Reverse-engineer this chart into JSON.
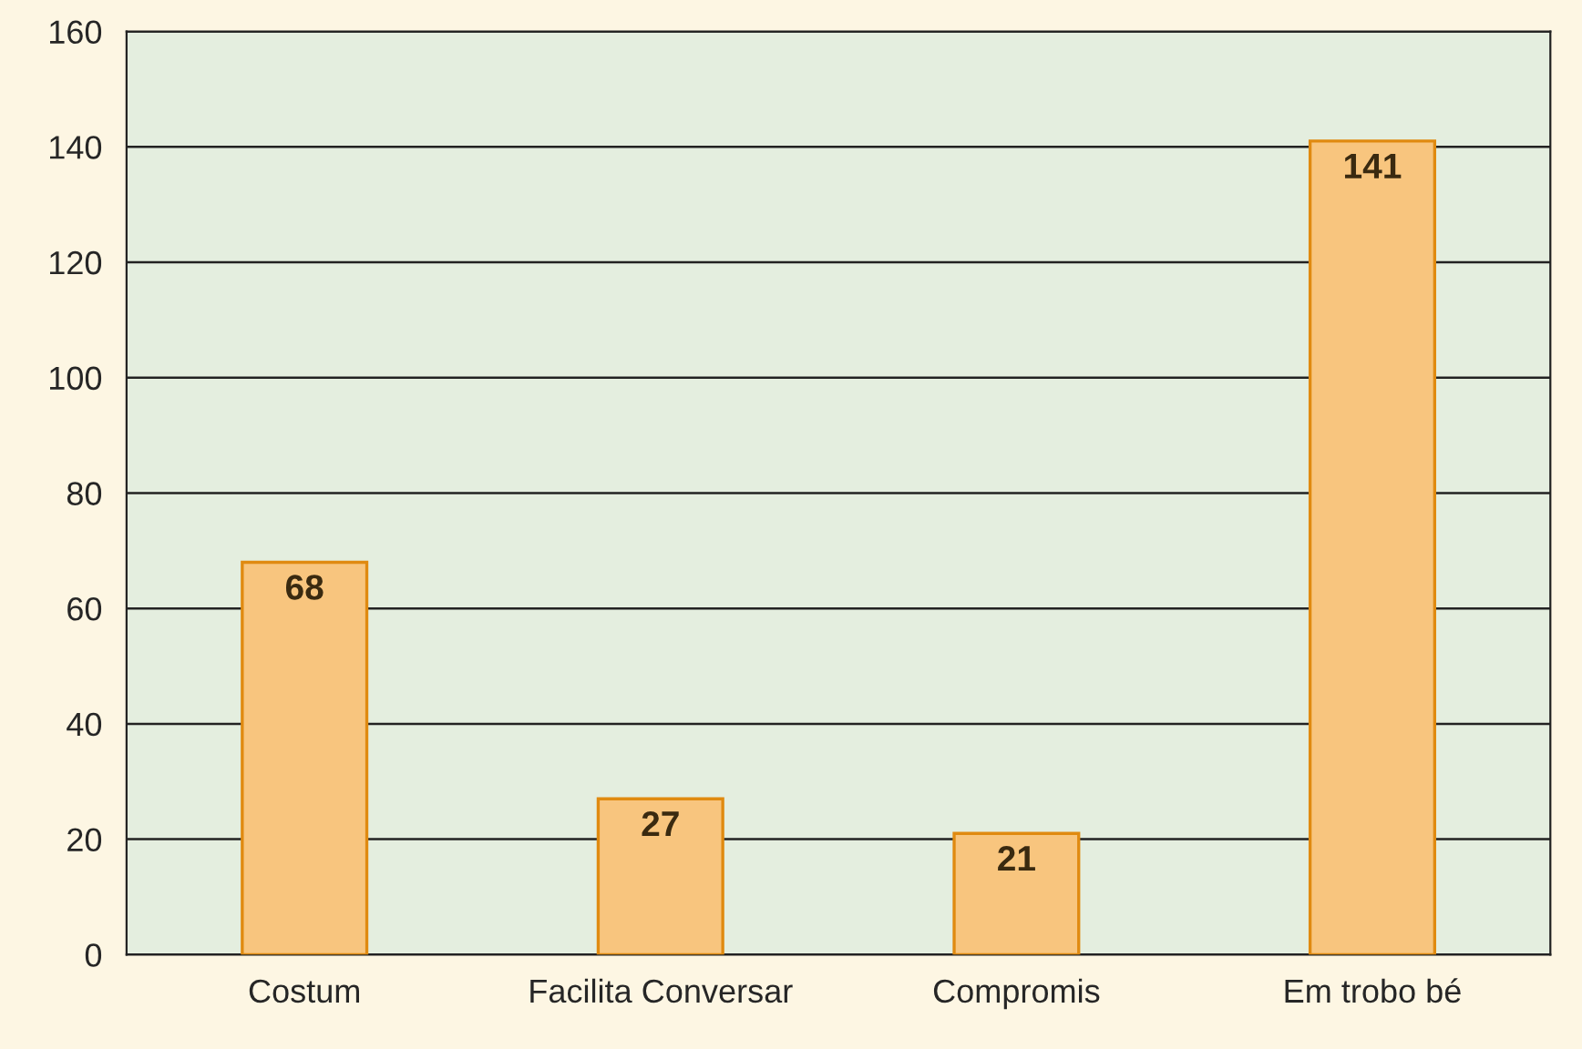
{
  "chart_data": {
    "type": "bar",
    "categories": [
      "Costum",
      "Facilita Conversar",
      "Compromis",
      "Em trobo bé"
    ],
    "values": [
      68,
      27,
      21,
      141
    ],
    "color": "#f8c57e",
    "ylim": [
      0,
      160
    ],
    "yticks": [
      0,
      20,
      40,
      60,
      80,
      100,
      120,
      140,
      160
    ],
    "grid": "y",
    "data_labels": true
  }
}
